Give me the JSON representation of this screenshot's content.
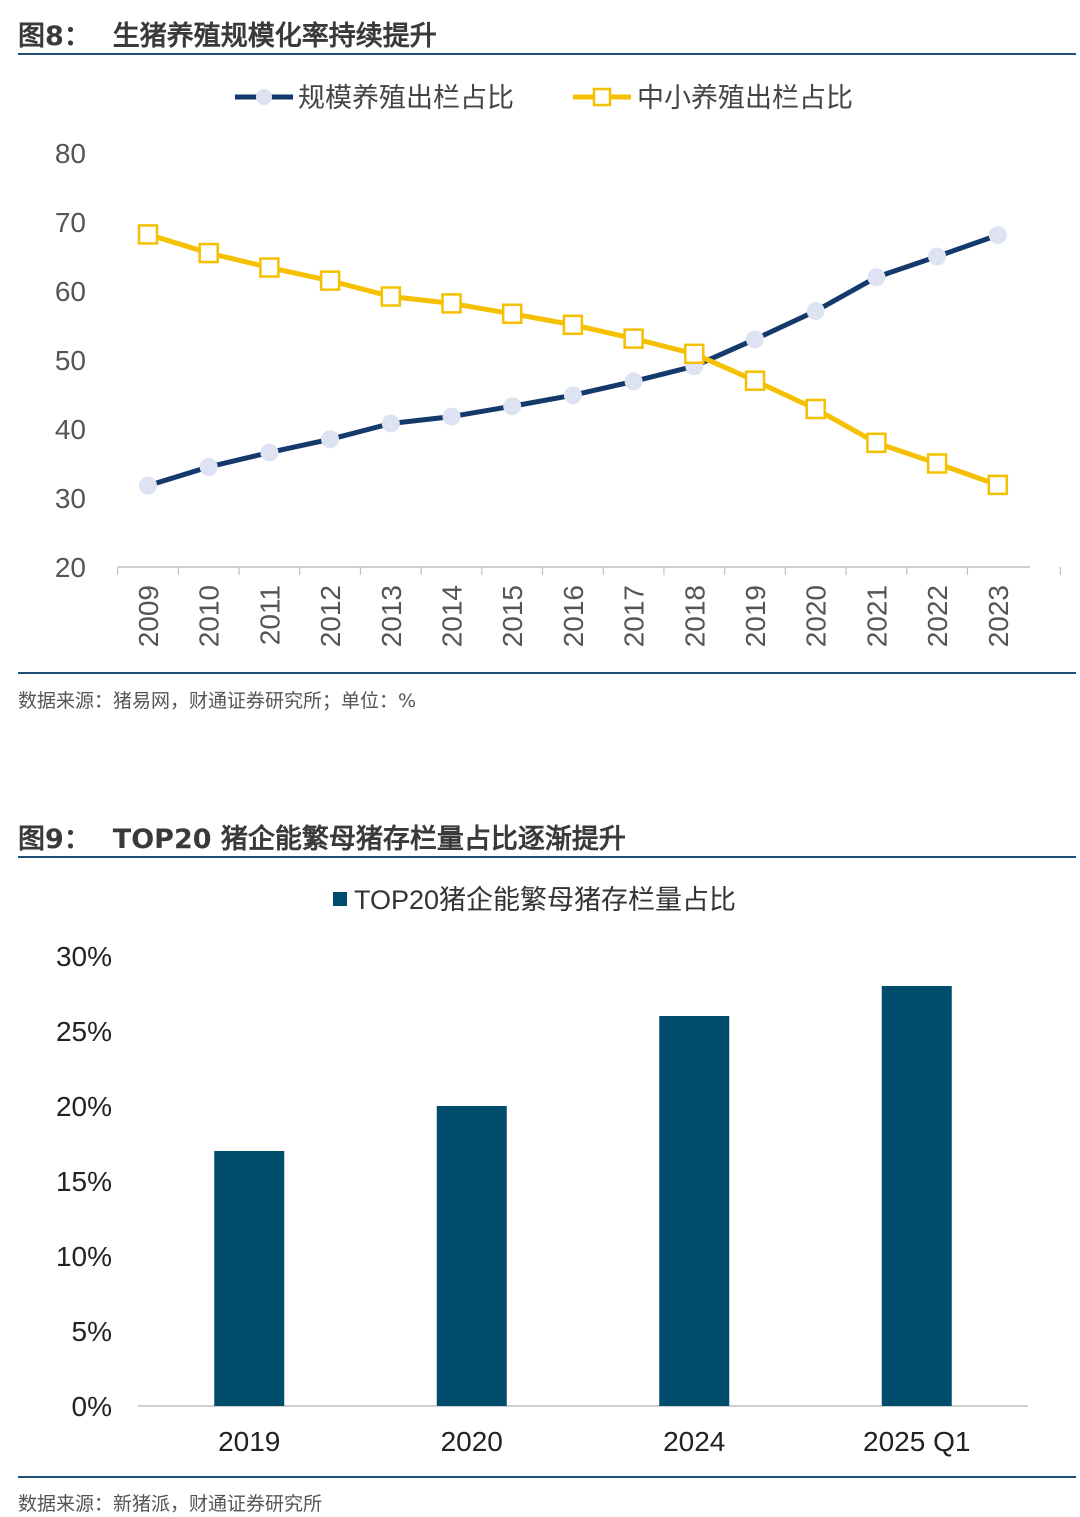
{
  "figure8": {
    "number": "图8：",
    "title": "生猪养殖规模化率持续提升",
    "source": "数据来源：猪易网，财通证券研究所；单位：%"
  },
  "figure9": {
    "number": "图9：",
    "title": "TOP20 猪企能繁母猪存栏量占比逐渐提升",
    "source": "数据来源：新猪派，财通证券研究所"
  },
  "chart_data": [
    {
      "type": "line",
      "title": "生猪养殖规模化率持续提升",
      "categories": [
        "2009",
        "2010",
        "2011",
        "2012",
        "2013",
        "2014",
        "2015",
        "2016",
        "2017",
        "2018",
        "2019",
        "2020",
        "2021",
        "2022",
        "2023"
      ],
      "series": [
        {
          "name": "规模养殖出栏占比",
          "color": "#14396b",
          "marker": "circle",
          "values": [
            31.8,
            34.5,
            36.6,
            38.5,
            40.8,
            41.8,
            43.3,
            44.9,
            46.9,
            49.1,
            53.0,
            57.1,
            62.0,
            65.0,
            68.1
          ]
        },
        {
          "name": "中小养殖出栏占比",
          "color": "#f5c000",
          "marker": "square",
          "values": [
            68.2,
            65.5,
            63.4,
            61.5,
            59.2,
            58.2,
            56.7,
            55.1,
            53.1,
            50.9,
            47.0,
            42.9,
            38.0,
            35.0,
            31.9
          ]
        }
      ],
      "ylim": [
        20,
        80
      ],
      "yticks": [
        20,
        30,
        40,
        50,
        60,
        70,
        80
      ],
      "xlabel": "",
      "ylabel": "",
      "legend": "top-center",
      "grid": false
    },
    {
      "type": "bar",
      "title": "TOP20 猪企能繁母猪存栏量占比逐渐提升",
      "categories": [
        "2019",
        "2020",
        "2024",
        "2025 Q1"
      ],
      "series": [
        {
          "name": "TOP20猪企能繁母猪存栏量占比",
          "color": "#004c6d",
          "values": [
            17,
            20,
            26,
            28
          ]
        }
      ],
      "ylim": [
        0,
        30
      ],
      "yticks": [
        "0%",
        "5%",
        "10%",
        "15%",
        "20%",
        "25%",
        "30%"
      ],
      "legend": "top-center",
      "grid": false
    }
  ]
}
